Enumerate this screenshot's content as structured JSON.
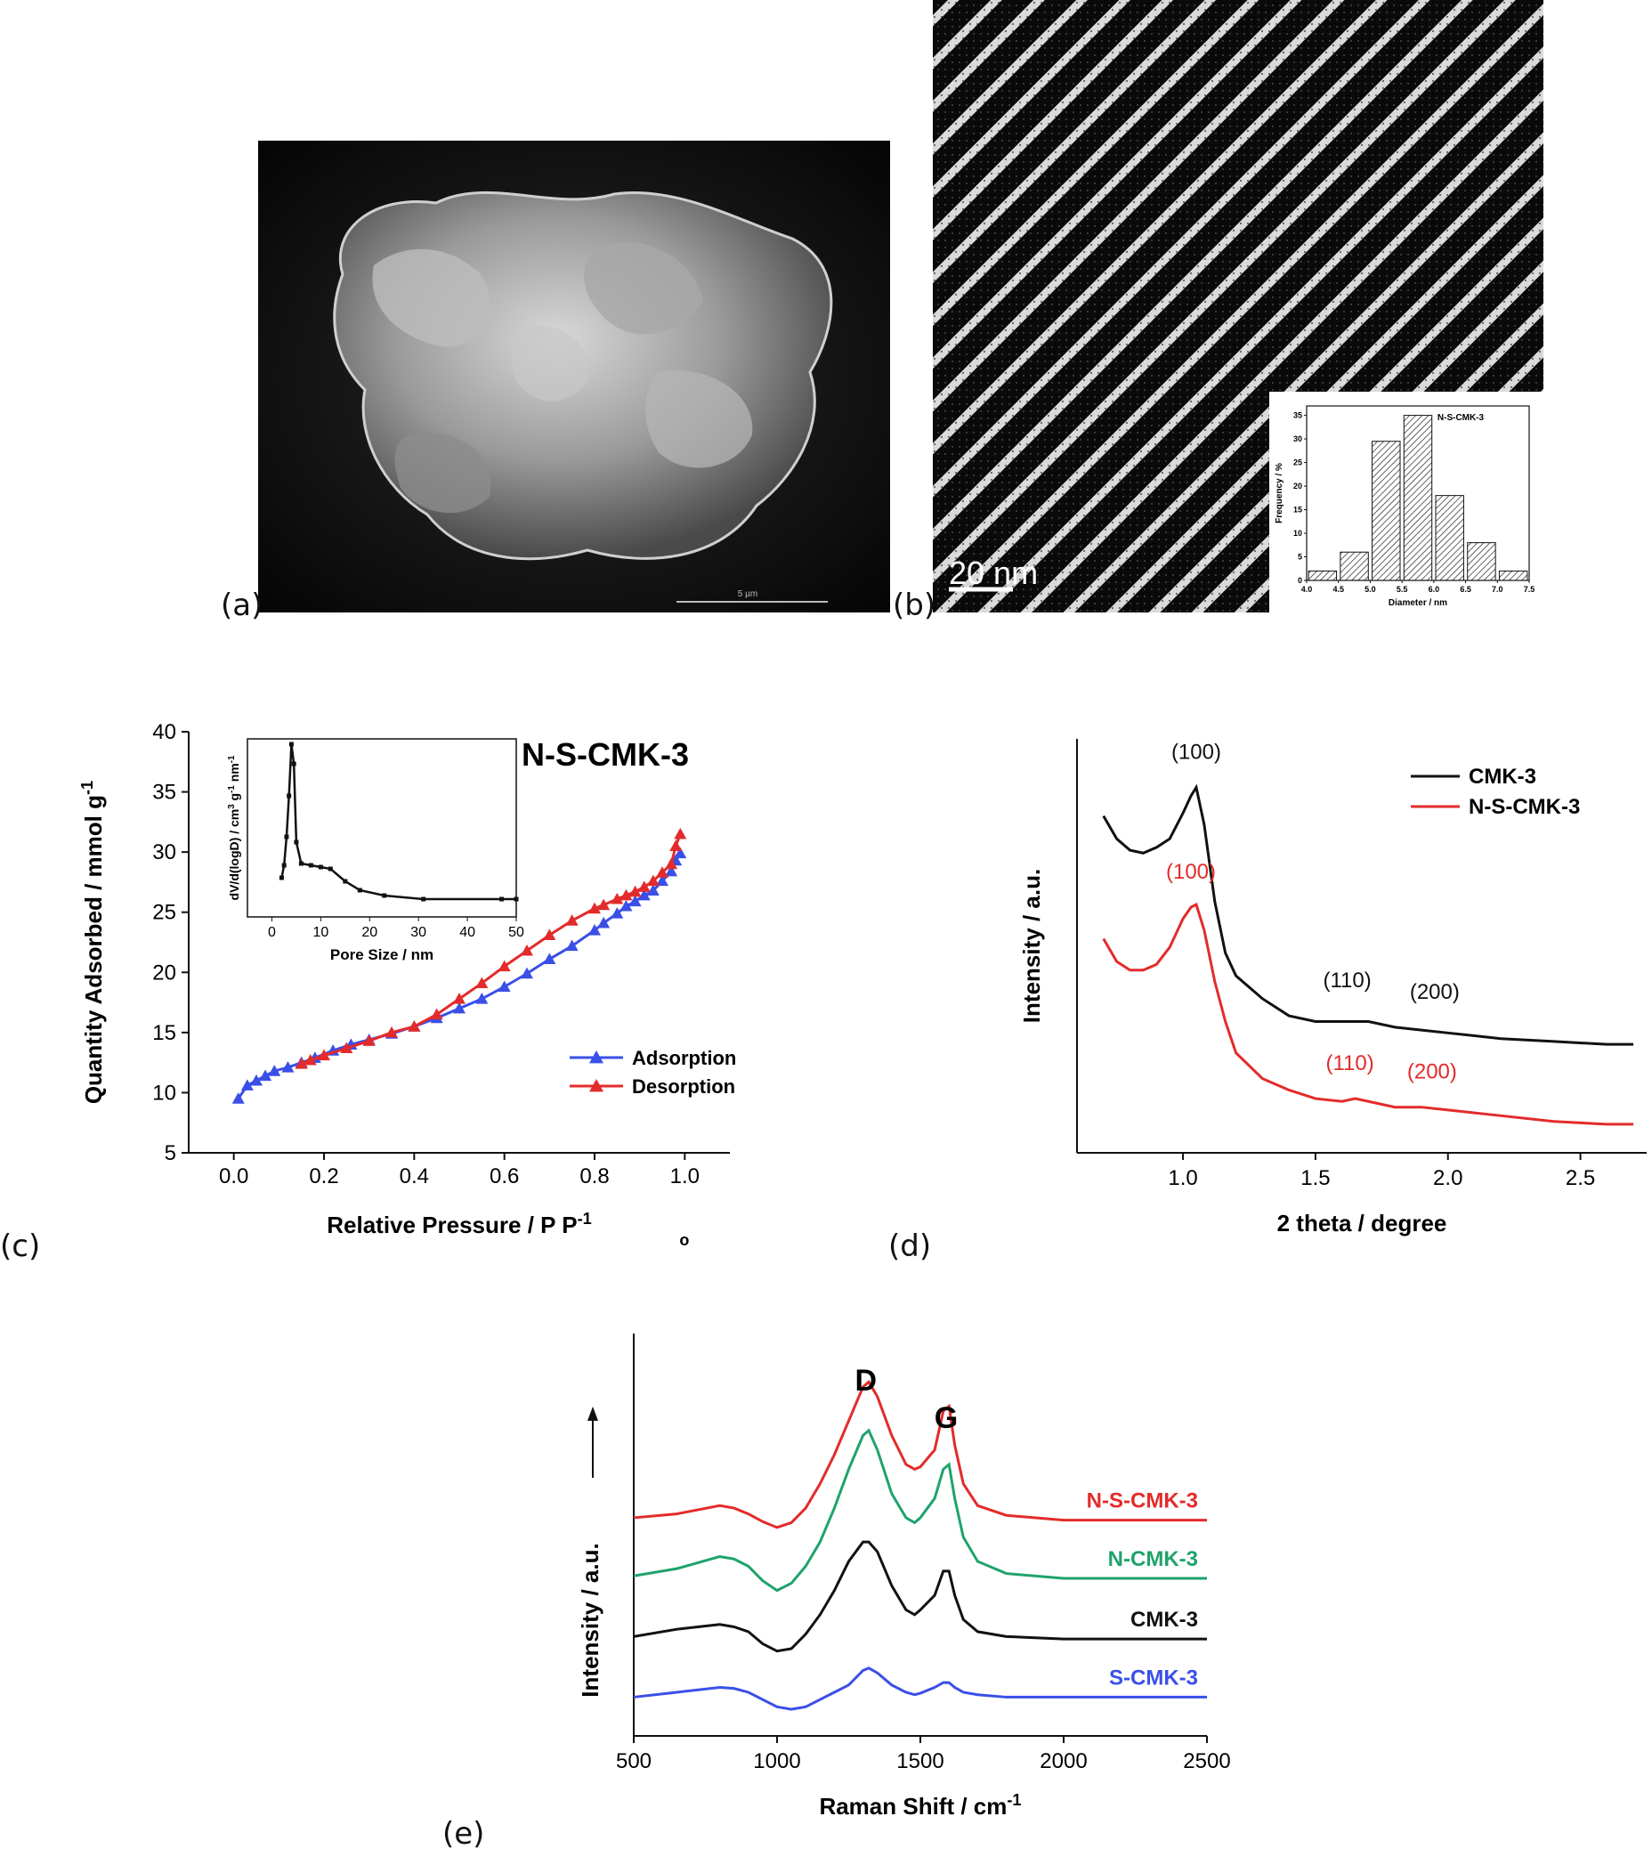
{
  "panel_labels": {
    "a": "(a)",
    "b": "(b)",
    "c": "(c)",
    "d": "(d)",
    "e": "(e)"
  },
  "panel_a": {
    "scale_text": "5 µm"
  },
  "panel_b": {
    "scale_text": "20 nm",
    "inset": {
      "type": "bar",
      "title": "N-S-CMK-3",
      "xlabel": "Diameter / nm",
      "ylabel": "Frequency / %",
      "bins": [
        4.25,
        4.75,
        5.25,
        5.75,
        6.25,
        6.75,
        7.25
      ],
      "values": [
        2,
        6,
        29.5,
        35,
        18,
        8,
        2
      ],
      "xlim": [
        4.0,
        7.5
      ],
      "ylim": [
        0,
        37
      ],
      "xticks": [
        "4.0",
        "4.5",
        "5.0",
        "5.5",
        "6.0",
        "6.5",
        "7.0",
        "7.5"
      ],
      "yticks": [
        "0",
        "5",
        "10",
        "15",
        "20",
        "25",
        "30",
        "35"
      ]
    }
  },
  "chart_data": [
    {
      "id": "c",
      "type": "line",
      "title": "N-S-CMK-3",
      "xlabel": "Relative Pressure / P P",
      "xlabel_sub": "o",
      "xlabel_sup": "-1",
      "ylabel": "Quantity Adsorbed / mmol g",
      "ylabel_sup": "-1",
      "xlim": [
        -0.1,
        1.1
      ],
      "ylim": [
        5,
        40
      ],
      "xticks": [
        "0.0",
        "0.2",
        "0.4",
        "0.6",
        "0.8",
        "1.0"
      ],
      "yticks": [
        "5",
        "10",
        "15",
        "20",
        "25",
        "30",
        "35",
        "40"
      ],
      "legend": "center-right",
      "series": [
        {
          "name": "Adsorption",
          "color": "#3a4fe8",
          "x": [
            0.01,
            0.03,
            0.05,
            0.07,
            0.09,
            0.12,
            0.15,
            0.18,
            0.22,
            0.26,
            0.3,
            0.35,
            0.4,
            0.45,
            0.5,
            0.55,
            0.6,
            0.65,
            0.7,
            0.75,
            0.8,
            0.82,
            0.85,
            0.87,
            0.89,
            0.91,
            0.93,
            0.95,
            0.97,
            0.98,
            0.99
          ],
          "y": [
            9.5,
            10.6,
            11.0,
            11.4,
            11.8,
            12.1,
            12.5,
            12.9,
            13.5,
            14.0,
            14.4,
            14.9,
            15.5,
            16.2,
            17.0,
            17.8,
            18.8,
            19.9,
            21.1,
            22.2,
            23.5,
            24.1,
            24.9,
            25.5,
            25.9,
            26.4,
            26.8,
            27.6,
            28.4,
            29.3,
            29.9
          ]
        },
        {
          "name": "Desorption",
          "color": "#e32b2b",
          "x": [
            0.99,
            0.98,
            0.97,
            0.95,
            0.93,
            0.91,
            0.89,
            0.87,
            0.85,
            0.82,
            0.8,
            0.75,
            0.7,
            0.65,
            0.6,
            0.55,
            0.5,
            0.45,
            0.4,
            0.35,
            0.3,
            0.25,
            0.2,
            0.17,
            0.15
          ],
          "y": [
            31.5,
            30.5,
            29.0,
            28.3,
            27.6,
            27.1,
            26.7,
            26.4,
            26.1,
            25.6,
            25.3,
            24.3,
            23.1,
            21.8,
            20.5,
            19.1,
            17.8,
            16.5,
            15.5,
            15.0,
            14.3,
            13.7,
            13.1,
            12.7,
            12.4
          ]
        }
      ],
      "inset": {
        "type": "line",
        "xlabel": "Pore Size / nm",
        "ylabel": "dV/d(logD) / cm",
        "ylabel_sup3": "3",
        "ylabel_mid": " g",
        "ylabel_sup1": "-1",
        "ylabel_end": " nm",
        "ylabel_sup2": "-1",
        "xlim": [
          -5,
          50
        ],
        "ylim": [
          0,
          1
        ],
        "xticks": [
          "0",
          "10",
          "20",
          "30",
          "40",
          "50"
        ],
        "x": [
          2.0,
          2.5,
          3.0,
          3.5,
          4.0,
          4.5,
          5.0,
          6.0,
          8.0,
          10.0,
          12.0,
          15.0,
          18.0,
          23.0,
          31.0,
          47.0,
          50.0
        ],
        "y": [
          0.22,
          0.29,
          0.45,
          0.68,
          0.97,
          0.86,
          0.42,
          0.3,
          0.29,
          0.28,
          0.27,
          0.2,
          0.15,
          0.12,
          0.1,
          0.1,
          0.1
        ]
      }
    },
    {
      "id": "d",
      "type": "line",
      "xlabel": "2 theta / degree",
      "ylabel": "Intensity / a.u.",
      "xlim": [
        0.6,
        2.75
      ],
      "xticks": [
        "1.0",
        "1.5",
        "2.0",
        "2.5"
      ],
      "legend": "top-right",
      "series": [
        {
          "name": "CMK-3",
          "color": "#111111",
          "x": [
            0.7,
            0.75,
            0.8,
            0.85,
            0.9,
            0.95,
            1.0,
            1.03,
            1.05,
            1.08,
            1.12,
            1.16,
            1.2,
            1.3,
            1.4,
            1.5,
            1.6,
            1.7,
            1.8,
            1.9,
            2.0,
            2.2,
            2.4,
            2.6,
            2.7
          ],
          "y": [
            0.78,
            0.7,
            0.66,
            0.65,
            0.67,
            0.7,
            0.79,
            0.85,
            0.88,
            0.75,
            0.48,
            0.3,
            0.22,
            0.14,
            0.08,
            0.06,
            0.06,
            0.06,
            0.04,
            0.03,
            0.02,
            0.0,
            -0.01,
            -0.02,
            -0.02
          ]
        },
        {
          "name": "N-S-CMK-3",
          "color": "#e32b2b",
          "x": [
            0.7,
            0.75,
            0.8,
            0.85,
            0.9,
            0.95,
            1.0,
            1.03,
            1.05,
            1.08,
            1.12,
            1.16,
            1.2,
            1.3,
            1.4,
            1.5,
            1.6,
            1.65,
            1.7,
            1.8,
            1.9,
            2.0,
            2.2,
            2.4,
            2.6,
            2.7
          ],
          "y": [
            0.35,
            0.27,
            0.24,
            0.24,
            0.26,
            0.32,
            0.42,
            0.46,
            0.47,
            0.38,
            0.2,
            0.06,
            -0.05,
            -0.14,
            -0.18,
            -0.21,
            -0.22,
            -0.21,
            -0.22,
            -0.24,
            -0.24,
            -0.25,
            -0.27,
            -0.29,
            -0.3,
            -0.3
          ]
        }
      ],
      "annotations": [
        {
          "text": "(100)",
          "color": "#111111"
        },
        {
          "text": "(110)",
          "color": "#111111"
        },
        {
          "text": "(200)",
          "color": "#111111"
        },
        {
          "text": "(100)",
          "color": "#e32b2b"
        },
        {
          "text": "(110)",
          "color": "#e32b2b"
        },
        {
          "text": "(200)",
          "color": "#e32b2b"
        }
      ]
    },
    {
      "id": "e",
      "type": "line",
      "xlabel": "Raman Shift / cm",
      "xlabel_sup": "-1",
      "ylabel": "Intensity / a.u.",
      "xlim": [
        500,
        2500
      ],
      "xticks": [
        "500",
        "1000",
        "1500",
        "2000",
        "2500"
      ],
      "peak_labels": [
        "D",
        "G"
      ],
      "series": [
        {
          "name": "N-S-CMK-3",
          "color": "#e32b2b",
          "offset": 3,
          "x": [
            500,
            650,
            800,
            850,
            900,
            950,
            1000,
            1050,
            1100,
            1150,
            1200,
            1250,
            1300,
            1320,
            1350,
            1400,
            1450,
            1480,
            1500,
            1550,
            1580,
            1600,
            1620,
            1650,
            1700,
            1800,
            2000,
            2200,
            2500
          ],
          "y": [
            0.1,
            0.18,
            0.35,
            0.3,
            0.18,
            0.02,
            -0.1,
            0.0,
            0.3,
            0.8,
            1.4,
            2.1,
            2.8,
            2.9,
            2.6,
            1.8,
            1.2,
            1.1,
            1.15,
            1.5,
            2.3,
            2.4,
            1.6,
            0.8,
            0.35,
            0.15,
            0.05,
            0.05,
            0.05
          ]
        },
        {
          "name": "N-CMK-3",
          "color": "#1fa36b",
          "offset": 2,
          "x": [
            500,
            650,
            800,
            850,
            900,
            950,
            1000,
            1050,
            1100,
            1150,
            1200,
            1250,
            1300,
            1320,
            1350,
            1400,
            1450,
            1480,
            1500,
            1550,
            1580,
            1600,
            1620,
            1650,
            1700,
            1800,
            2000,
            2200,
            2500
          ],
          "y": [
            0.1,
            0.25,
            0.5,
            0.45,
            0.3,
            0.0,
            -0.2,
            -0.05,
            0.3,
            0.8,
            1.5,
            2.3,
            3.0,
            3.1,
            2.7,
            1.8,
            1.3,
            1.2,
            1.3,
            1.7,
            2.3,
            2.4,
            1.7,
            0.9,
            0.4,
            0.15,
            0.05,
            0.05,
            0.05
          ]
        },
        {
          "name": "CMK-3",
          "color": "#111111",
          "offset": 1,
          "x": [
            500,
            650,
            800,
            850,
            900,
            950,
            1000,
            1050,
            1100,
            1150,
            1200,
            1250,
            1300,
            1320,
            1350,
            1400,
            1450,
            1480,
            1500,
            1550,
            1580,
            1600,
            1620,
            1650,
            1700,
            1800,
            2000,
            2200,
            2500
          ],
          "y": [
            0.05,
            0.2,
            0.3,
            0.25,
            0.15,
            -0.1,
            -0.25,
            -0.2,
            0.1,
            0.5,
            1.0,
            1.6,
            2.0,
            2.0,
            1.8,
            1.1,
            0.6,
            0.5,
            0.6,
            0.9,
            1.4,
            1.4,
            0.9,
            0.4,
            0.15,
            0.05,
            0.0,
            0.0,
            0.0
          ]
        },
        {
          "name": "S-CMK-3",
          "color": "#3a4fe8",
          "offset": 0,
          "x": [
            500,
            650,
            800,
            850,
            900,
            950,
            1000,
            1050,
            1100,
            1150,
            1200,
            1250,
            1300,
            1320,
            1350,
            1400,
            1450,
            1480,
            1500,
            1550,
            1580,
            1600,
            1620,
            1650,
            1700,
            1800,
            2000,
            2200,
            2500
          ],
          "y": [
            0.0,
            0.1,
            0.2,
            0.18,
            0.1,
            -0.05,
            -0.2,
            -0.25,
            -0.2,
            -0.05,
            0.1,
            0.25,
            0.55,
            0.6,
            0.5,
            0.25,
            0.1,
            0.05,
            0.08,
            0.2,
            0.3,
            0.3,
            0.2,
            0.1,
            0.05,
            0.0,
            0.0,
            0.0,
            0.0
          ]
        }
      ]
    }
  ]
}
